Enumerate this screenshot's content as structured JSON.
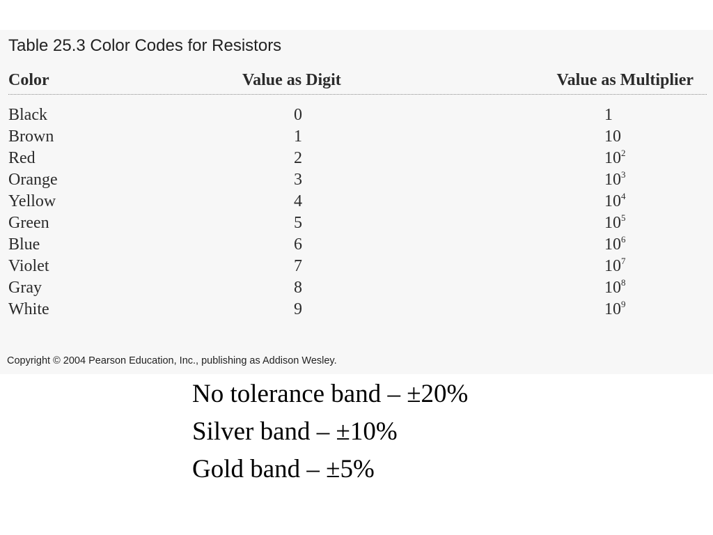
{
  "table": {
    "title": "Table 25.3  Color Codes for Resistors",
    "headers": {
      "color": "Color",
      "digit": "Value as Digit",
      "multiplier": "Value as Multiplier"
    },
    "rows": [
      {
        "color": "Black",
        "digit": "0",
        "multiplier_base": "1",
        "multiplier_exp": ""
      },
      {
        "color": "Brown",
        "digit": "1",
        "multiplier_base": "10",
        "multiplier_exp": ""
      },
      {
        "color": "Red",
        "digit": "2",
        "multiplier_base": "10",
        "multiplier_exp": "2"
      },
      {
        "color": "Orange",
        "digit": "3",
        "multiplier_base": "10",
        "multiplier_exp": "3"
      },
      {
        "color": "Yellow",
        "digit": "4",
        "multiplier_base": "10",
        "multiplier_exp": "4"
      },
      {
        "color": "Green",
        "digit": "5",
        "multiplier_base": "10",
        "multiplier_exp": "5"
      },
      {
        "color": "Blue",
        "digit": "6",
        "multiplier_base": "10",
        "multiplier_exp": "6"
      },
      {
        "color": "Violet",
        "digit": "7",
        "multiplier_base": "10",
        "multiplier_exp": "7"
      },
      {
        "color": "Gray",
        "digit": "8",
        "multiplier_base": "10",
        "multiplier_exp": "8"
      },
      {
        "color": "White",
        "digit": "9",
        "multiplier_base": "10",
        "multiplier_exp": "9"
      }
    ],
    "copyright": "Copyright © 2004 Pearson Education, Inc., publishing as Addison Wesley."
  },
  "notes": [
    "No tolerance band – ±20%",
    "Silver band – ±10%",
    "Gold band – ±5%"
  ],
  "colors": {
    "panel_background": "#f7f7f7",
    "text": "#2b2b2b",
    "page_background": "#ffffff"
  }
}
